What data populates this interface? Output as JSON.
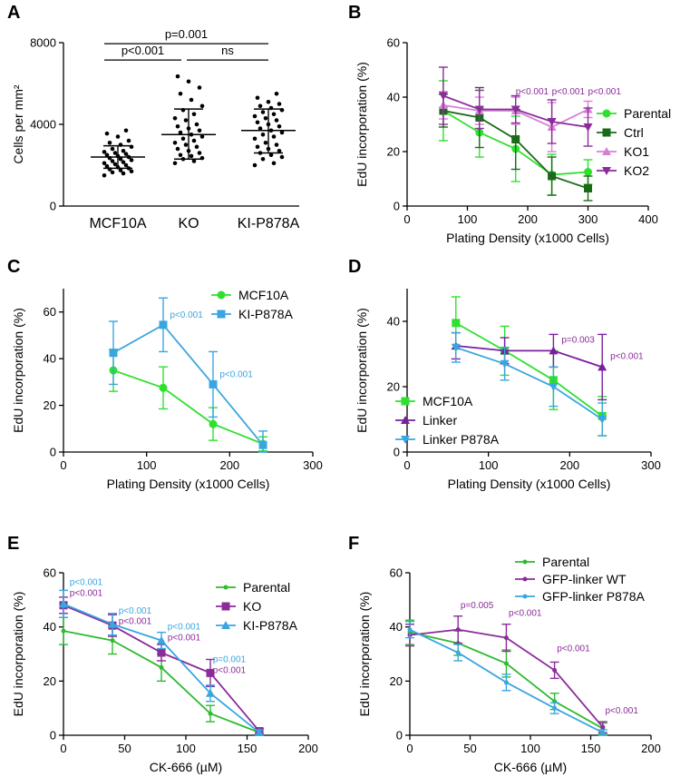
{
  "chart_data": [
    {
      "panel": "A",
      "type": "scatter",
      "ylabel": "Cells per mm²",
      "ylim": [
        0,
        8000
      ],
      "yticks": [
        0,
        4000,
        8000
      ],
      "categories": [
        "MCF10A",
        "KO",
        "KI-P878A"
      ],
      "groups": [
        {
          "name": "MCF10A",
          "mean": 2400,
          "sd_low": 1850,
          "sd_high": 2950,
          "points": [
            1500,
            1600,
            1650,
            1700,
            1750,
            1800,
            1850,
            1900,
            1950,
            2000,
            2050,
            2100,
            2150,
            2200,
            2250,
            2300,
            2350,
            2400,
            2450,
            2500,
            2550,
            2600,
            2650,
            2700,
            2800,
            2900,
            3000,
            3100,
            3200,
            3400,
            3550,
            3700
          ]
        },
        {
          "name": "KO",
          "mean": 3500,
          "sd_low": 2300,
          "sd_high": 4750,
          "points": [
            2100,
            2200,
            2300,
            2350,
            2450,
            2500,
            2600,
            2700,
            2800,
            2900,
            3000,
            3100,
            3200,
            3300,
            3400,
            3500,
            3600,
            3700,
            3800,
            3900,
            4000,
            4200,
            4300,
            4500,
            4700,
            4900,
            5200,
            5500,
            5800,
            6100,
            6350
          ]
        },
        {
          "name": "KI-P878A",
          "mean": 3700,
          "sd_low": 2600,
          "sd_high": 4750,
          "points": [
            2000,
            2100,
            2300,
            2400,
            2500,
            2600,
            2700,
            2800,
            2900,
            3000,
            3100,
            3300,
            3400,
            3500,
            3600,
            3700,
            3800,
            3900,
            4000,
            4100,
            4200,
            4300,
            4400,
            4500,
            4600,
            4700,
            4800,
            4900,
            5000,
            5100,
            5300,
            5500
          ]
        }
      ],
      "comparisons": [
        {
          "from": 0,
          "to": 1,
          "label": "p<0.001",
          "level": 7150
        },
        {
          "from": 1,
          "to": 2,
          "label": "ns",
          "level": 7150
        },
        {
          "from": 0,
          "to": 2,
          "label": "p=0.001",
          "level": 7950
        }
      ]
    },
    {
      "panel": "B",
      "type": "line",
      "xlabel": "Plating Density (x1000 Cells)",
      "ylabel": "EdU incorporation (%)",
      "xlim": [
        0,
        400
      ],
      "ylim": [
        0,
        60
      ],
      "xticks": [
        0,
        100,
        200,
        300,
        400
      ],
      "yticks": [
        0,
        20,
        40,
        60
      ],
      "x": [
        60,
        120,
        180,
        240,
        300
      ],
      "legend_position": "right",
      "series": [
        {
          "name": "Parental",
          "color": "#2fe02f",
          "marker": "circle",
          "values": [
            35,
            27,
            21,
            11.5,
            12.5
          ],
          "err": [
            11,
            9,
            12,
            7.5,
            4.5
          ]
        },
        {
          "name": "Ctrl",
          "color": "#1a6a1a",
          "marker": "square",
          "values": [
            35,
            32.5,
            24.5,
            11,
            6.5
          ],
          "err": [
            6,
            11,
            11,
            7,
            4.5
          ]
        },
        {
          "name": "KO1",
          "color": "#d580d5",
          "marker": "triangle-up",
          "values": [
            37,
            35,
            35,
            29,
            35.5
          ],
          "err": [
            5,
            5,
            5,
            9,
            3
          ]
        },
        {
          "name": "KO2",
          "color": "#8b2c9a",
          "marker": "triangle-down",
          "values": [
            40.5,
            35.5,
            35.5,
            31,
            29
          ],
          "err": [
            10.5,
            7,
            5,
            8,
            7
          ]
        }
      ],
      "annotations": [
        {
          "x": 180,
          "y": 41,
          "text": "p<0.001"
        },
        {
          "x": 240,
          "y": 41,
          "text": "p<0.001"
        },
        {
          "x": 300,
          "y": 41,
          "text": "p<0.001"
        }
      ]
    },
    {
      "panel": "C",
      "type": "line",
      "xlabel": "Plating Density (x1000 Cells)",
      "ylabel": "EdU incorporation (%)",
      "xlim": [
        0,
        300
      ],
      "ylim": [
        0,
        70
      ],
      "xticks": [
        0,
        100,
        200,
        300
      ],
      "yticks": [
        0,
        20,
        40,
        60
      ],
      "x": [
        60,
        120,
        180,
        240
      ],
      "legend_position": "top-right",
      "series": [
        {
          "name": "MCF10A",
          "color": "#2fe02f",
          "marker": "circle",
          "values": [
            35,
            27.5,
            12,
            3.5
          ],
          "err": [
            9,
            9,
            7,
            3
          ]
        },
        {
          "name": "KI-P878A",
          "color": "#3aa6e0",
          "marker": "square",
          "values": [
            42.5,
            54.5,
            29,
            3
          ],
          "err": [
            13.5,
            11.5,
            14,
            6
          ]
        }
      ],
      "annotations": [
        {
          "x": 128,
          "y": 57.5,
          "text": "p<0.001"
        },
        {
          "x": 188,
          "y": 32,
          "text": "p<0.001"
        }
      ]
    },
    {
      "panel": "D",
      "type": "line",
      "xlabel": "Plating Density (x1000 Cells)",
      "ylabel": "EdU incorporation (%)",
      "xlim": [
        0,
        300
      ],
      "ylim": [
        0,
        50
      ],
      "xticks": [
        0,
        100,
        200,
        300
      ],
      "yticks": [
        0,
        20,
        40
      ],
      "x": [
        60,
        120,
        180,
        240
      ],
      "legend_position": "bottom-left",
      "series": [
        {
          "name": "MCF10A",
          "color": "#2fe02f",
          "marker": "square",
          "values": [
            39.5,
            31,
            22,
            11
          ],
          "err": [
            8,
            7.5,
            9,
            6
          ]
        },
        {
          "name": "Linker",
          "color": "#7a1fa0",
          "marker": "triangle-up",
          "values": [
            32.5,
            31,
            31,
            26
          ],
          "err": [
            4,
            4,
            5,
            10
          ]
        },
        {
          "name": "Linker P878A",
          "color": "#3aa6e0",
          "marker": "triangle-down",
          "values": [
            32,
            27,
            20,
            10
          ],
          "err": [
            4.5,
            5,
            6,
            5
          ]
        }
      ],
      "annotations": [
        {
          "x": 190,
          "y": 33.5,
          "text": "p=0.003"
        },
        {
          "x": 250,
          "y": 28.5,
          "text": "p<0.001"
        }
      ]
    },
    {
      "panel": "E",
      "type": "line",
      "xlabel": "CK-666 (µM)",
      "ylabel": "EdU incorporation (%)",
      "xlim": [
        0,
        200
      ],
      "ylim": [
        0,
        60
      ],
      "xticks": [
        0,
        50,
        100,
        150,
        200
      ],
      "yticks": [
        0,
        20,
        40,
        60
      ],
      "x": [
        0,
        40,
        80,
        120,
        160
      ],
      "legend_position": "top-right",
      "series": [
        {
          "name": "Parental",
          "color": "#2fba2f",
          "marker": "dot",
          "values": [
            38.5,
            35,
            25,
            8,
            1
          ],
          "err": [
            5,
            5,
            5,
            3,
            1
          ]
        },
        {
          "name": "KO",
          "color": "#8b2c9a",
          "marker": "square",
          "values": [
            48,
            40.5,
            30.5,
            23,
            1.5
          ],
          "err": [
            3,
            4,
            3,
            5,
            1
          ]
        },
        {
          "name": "KI-P878A",
          "color": "#3aa6e0",
          "marker": "triangle-up",
          "values": [
            48.5,
            41,
            35,
            15.5,
            1
          ],
          "err": [
            5,
            4,
            3,
            3,
            1
          ]
        }
      ],
      "annotations": [
        {
          "x": 5,
          "y": 55.5,
          "text": "p<0.001",
          "series": "KI-P878A"
        },
        {
          "x": 5,
          "y": 51.5,
          "text": "p<0.001",
          "series": "KO"
        },
        {
          "x": 45,
          "y": 45,
          "text": "p<0.001",
          "series": "KI-P878A"
        },
        {
          "x": 45,
          "y": 41,
          "text": "p<0.001",
          "series": "KO"
        },
        {
          "x": 85,
          "y": 39,
          "text": "p<0.001",
          "series": "KI-P878A"
        },
        {
          "x": 85,
          "y": 35,
          "text": "p<0.001",
          "series": "KO"
        },
        {
          "x": 122,
          "y": 27,
          "text": "p=0.001",
          "series": "KI-P878A"
        },
        {
          "x": 122,
          "y": 23,
          "text": "p<0.001",
          "series": "KO"
        }
      ]
    },
    {
      "panel": "F",
      "type": "line",
      "xlabel": "CK-666 (µM)",
      "ylabel": "EdU incorporation (%)",
      "xlim": [
        0,
        200
      ],
      "ylim": [
        0,
        60
      ],
      "xticks": [
        0,
        50,
        100,
        150,
        200
      ],
      "yticks": [
        0,
        20,
        40,
        60
      ],
      "x": [
        0,
        40,
        80,
        120,
        160
      ],
      "legend_position": "top-right",
      "series": [
        {
          "name": "Parental",
          "color": "#2fba2f",
          "marker": "dot",
          "values": [
            38,
            34,
            26.5,
            12.5,
            2.5
          ],
          "err": [
            4.5,
            4.5,
            5,
            3,
            2
          ]
        },
        {
          "name": "GFP-linker WT",
          "color": "#8b2c9a",
          "marker": "dot",
          "values": [
            37,
            39,
            36,
            24,
            3
          ],
          "err": [
            4,
            5,
            5,
            3,
            2
          ]
        },
        {
          "name": "GFP-linker P878A",
          "color": "#3aa6e0",
          "marker": "dot",
          "values": [
            39,
            30.5,
            19.5,
            10,
            1
          ],
          "err": [
            3,
            3,
            3,
            2,
            1
          ]
        }
      ],
      "annotations": [
        {
          "x": 42,
          "y": 47,
          "text": "p=0.005"
        },
        {
          "x": 82,
          "y": 44,
          "text": "p<0.001"
        },
        {
          "x": 122,
          "y": 31,
          "text": "p<0.001"
        },
        {
          "x": 162,
          "y": 8,
          "text": "p<0.001"
        }
      ]
    }
  ]
}
